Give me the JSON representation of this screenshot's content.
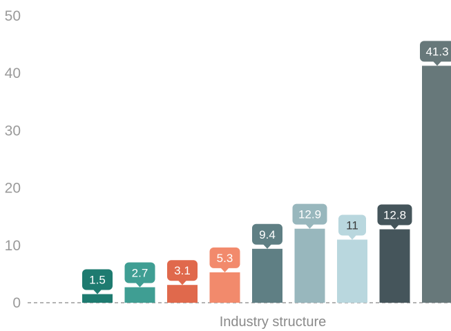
{
  "chart_data": {
    "type": "bar",
    "xlabel": "Industry structure",
    "ylabel": "",
    "ylim": [
      0,
      50
    ],
    "yticks": [
      0,
      10,
      20,
      30,
      40,
      50
    ],
    "grid": false,
    "values": [
      1.5,
      2.7,
      3.1,
      5.3,
      9.4,
      12.9,
      11,
      12.8,
      41.3
    ],
    "data_labels": [
      "1.5",
      "2.7",
      "3.1",
      "5.3",
      "9.4",
      "12.9",
      "11",
      "12.8",
      "41.3"
    ],
    "colors": [
      "#1e7b70",
      "#3f9e93",
      "#e0694c",
      "#f28a6c",
      "#5f7f84",
      "#98b7bd",
      "#b9d7de",
      "#45555b",
      "#67787a"
    ],
    "label_text_colors": [
      "#ffffff",
      "#ffffff",
      "#ffffff",
      "#ffffff",
      "#ffffff",
      "#ffffff",
      "#3a3a3a",
      "#ffffff",
      "#ffffff"
    ]
  }
}
